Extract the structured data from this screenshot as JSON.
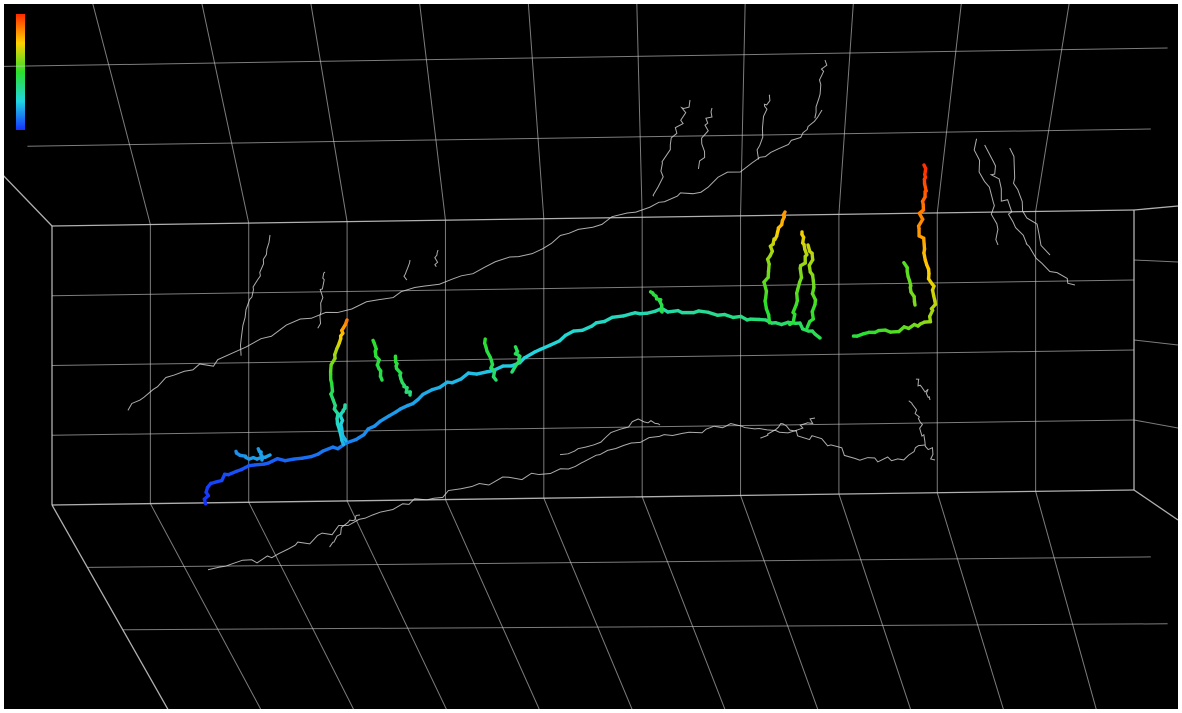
{
  "view": {
    "type": "3d-path-viewer",
    "background": "#000000",
    "border": "#ffffff",
    "grid_color": "#cfcfcf",
    "projection_color": "#d8d8d8",
    "grid": true,
    "projections": [
      "top-wall",
      "back-wall",
      "right-wall",
      "floor"
    ]
  },
  "colorbar": {
    "placement": "top-left",
    "orientation": "vertical",
    "colormap": "jet",
    "stops": [
      "#ff2a00",
      "#ffd000",
      "#2be02b",
      "#22d6e0",
      "#1533ff"
    ]
  }
}
